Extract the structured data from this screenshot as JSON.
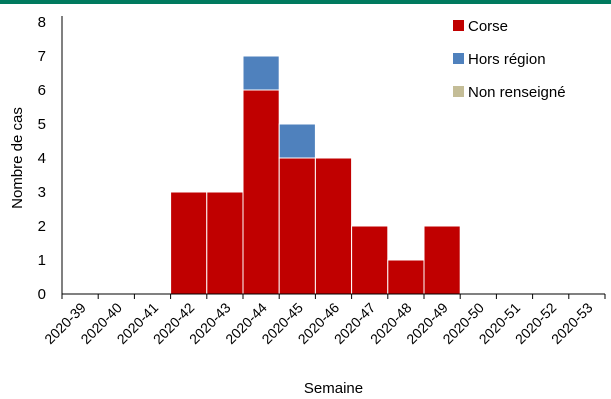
{
  "colors": {
    "top_rule": "#007A5E",
    "corse": "#C00000",
    "hors_region": "#4F81BD",
    "non_renseigne": "#C4BD97",
    "axis": "#000000"
  },
  "chart_data": {
    "type": "bar",
    "stacked": true,
    "xlabel": "Semaine",
    "ylabel": "Nombre de cas",
    "ylim": [
      0,
      8
    ],
    "yticks": [
      0,
      1,
      2,
      3,
      4,
      5,
      6,
      7,
      8
    ],
    "grid": false,
    "legend_position": "top-right",
    "categories": [
      "2020-39",
      "2020-40",
      "2020-41",
      "2020-42",
      "2020-43",
      "2020-44",
      "2020-45",
      "2020-46",
      "2020-47",
      "2020-48",
      "2020-49",
      "2020-50",
      "2020-51",
      "2020-52",
      "2020-53"
    ],
    "series": [
      {
        "name": "Corse",
        "color": "#C00000",
        "values": [
          0,
          0,
          0,
          3,
          3,
          6,
          4,
          4,
          2,
          1,
          2,
          0,
          0,
          0,
          0
        ]
      },
      {
        "name": "Hors région",
        "color": "#4F81BD",
        "values": [
          0,
          0,
          0,
          0,
          0,
          1,
          1,
          0,
          0,
          0,
          0,
          0,
          0,
          0,
          0
        ]
      },
      {
        "name": "Non renseigné",
        "color": "#C4BD97",
        "values": [
          0,
          0,
          0,
          0,
          0,
          0,
          0,
          0,
          0,
          0,
          0,
          0,
          0,
          0,
          0
        ]
      }
    ]
  }
}
